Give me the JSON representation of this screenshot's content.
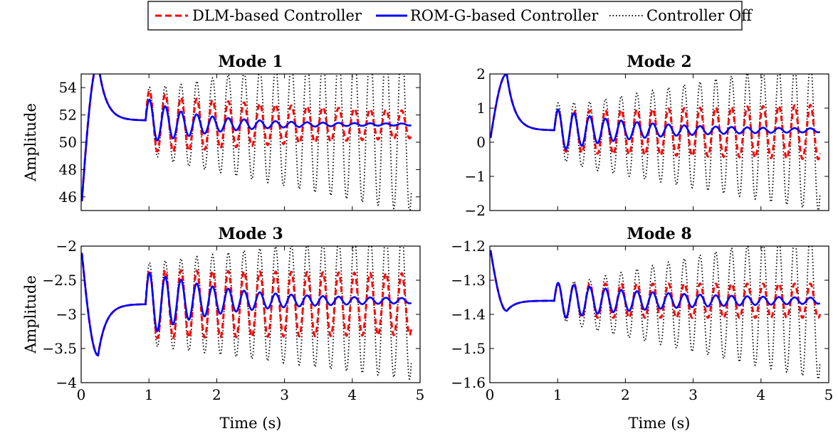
{
  "legend": [
    {
      "label": "DLM-based Controller",
      "color": "#ff0000",
      "style": "dashed"
    },
    {
      "label": "ROM-G-based Controller",
      "color": "#0000ff",
      "style": "solid"
    },
    {
      "label": "Controller Off",
      "color": "#000000",
      "style": "dotted"
    }
  ],
  "chart_data": [
    {
      "type": "line",
      "title": "Mode 1",
      "xlabel": "",
      "ylabel": "Amplitude",
      "xlim": [
        0,
        5
      ],
      "ylim": [
        45,
        55
      ],
      "xticks": [],
      "yticks": [
        46,
        48,
        50,
        52,
        54
      ],
      "series": [
        {
          "name": "Controller Off",
          "base": 51.3,
          "amp_start": 2.4,
          "amp_end": 6.4,
          "decay": 0,
          "start_value": 45.0,
          "peak": 55.8,
          "plateau": 51.6
        },
        {
          "name": "DLM-based Controller",
          "base": 51.3,
          "amp_start": 1.8,
          "amp_end": 0.9,
          "decay": 0.3,
          "start_value": 45.0,
          "peak": 55.8,
          "plateau": 51.6
        },
        {
          "name": "ROM-G-based Controller",
          "base": 51.3,
          "amp_start": 1.6,
          "amp_end": 0.1,
          "decay": 1.1,
          "start_value": 45.0,
          "peak": 55.8,
          "plateau": 51.6
        }
      ]
    },
    {
      "type": "line",
      "title": "Mode 2",
      "xlabel": "",
      "ylabel": "",
      "xlim": [
        0,
        5
      ],
      "ylim": [
        -2,
        2
      ],
      "xticks": [],
      "yticks": [
        -2,
        -1,
        0,
        1,
        2
      ],
      "series": [
        {
          "name": "Controller Off",
          "base": 0.2,
          "amp_start": 0.8,
          "amp_end": 2.2,
          "decay": 0,
          "start_value": 0.0,
          "peak": 2.0,
          "plateau": 0.35
        },
        {
          "name": "DLM-based Controller",
          "base": 0.3,
          "amp_start": 0.6,
          "amp_end": 0.8,
          "decay": 0,
          "start_value": 0.0,
          "peak": 2.0,
          "plateau": 0.35
        },
        {
          "name": "ROM-G-based Controller",
          "base": 0.35,
          "amp_start": 0.6,
          "amp_end": 0.08,
          "decay": 0.9,
          "start_value": 0.0,
          "peak": 2.0,
          "plateau": 0.35
        }
      ]
    },
    {
      "type": "line",
      "title": "Mode 3",
      "xlabel": "Time (s)",
      "ylabel": "Amplitude",
      "xlim": [
        0,
        5
      ],
      "ylim": [
        -4,
        -2
      ],
      "xticks": [
        0,
        1,
        2,
        3,
        4,
        5
      ],
      "yticks": [
        -4,
        -3.5,
        -3,
        -2.5,
        -2
      ],
      "series": [
        {
          "name": "Controller Off",
          "base": -2.85,
          "amp_start": 0.6,
          "amp_end": 1.1,
          "decay": 0,
          "start_value": -2.0,
          "peak": -3.6,
          "plateau": -2.85
        },
        {
          "name": "DLM-based Controller",
          "base": -2.85,
          "amp_start": 0.5,
          "amp_end": 0.45,
          "decay": 0,
          "start_value": -2.0,
          "peak": -3.6,
          "plateau": -2.85
        },
        {
          "name": "ROM-G-based Controller",
          "base": -2.8,
          "amp_start": 0.45,
          "amp_end": 0.05,
          "decay": 0.9,
          "start_value": -2.0,
          "peak": -3.6,
          "plateau": -2.85
        }
      ]
    },
    {
      "type": "line",
      "title": "Mode 8",
      "xlabel": "Time (s)",
      "ylabel": "",
      "xlim": [
        0,
        5
      ],
      "ylim": [
        -1.6,
        -1.2
      ],
      "xticks": [
        0,
        1,
        2,
        3,
        4,
        5
      ],
      "yticks": [
        -1.6,
        -1.5,
        -1.4,
        -1.3,
        -1.2
      ],
      "series": [
        {
          "name": "Controller Off",
          "base": -1.37,
          "amp_start": 0.05,
          "amp_end": 0.22,
          "decay": 0,
          "start_value": -1.2,
          "peak": -1.39,
          "plateau": -1.36
        },
        {
          "name": "DLM-based Controller",
          "base": -1.36,
          "amp_start": 0.05,
          "amp_end": 0.05,
          "decay": 0,
          "start_value": -1.2,
          "peak": -1.39,
          "plateau": -1.36
        },
        {
          "name": "ROM-G-based Controller",
          "base": -1.36,
          "amp_start": 0.05,
          "amp_end": 0.008,
          "decay": 0.6,
          "start_value": -1.2,
          "peak": -1.39,
          "plateau": -1.36
        }
      ]
    }
  ]
}
